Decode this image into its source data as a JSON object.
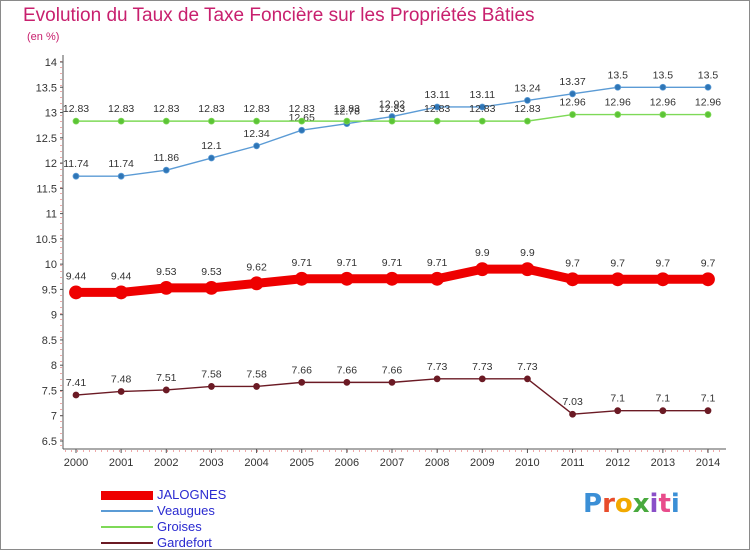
{
  "title": "Evolution du Taux de Taxe Foncière sur les Propriétés Bâties",
  "unit": "(en %)",
  "brand": {
    "text": "Proxiti",
    "colors": [
      "#3b8fd6",
      "#e84c2b",
      "#f2a900",
      "#48a93d",
      "#8a4fc8",
      "#e84c8b",
      "#3b8fd6"
    ]
  },
  "chart_data": {
    "type": "line",
    "title": "Evolution du Taux de Taxe Foncière sur les Propriétés Bâties",
    "ylabel": "(en %)",
    "xlabel": "",
    "categories": [
      "2000",
      "2001",
      "2002",
      "2003",
      "2004",
      "2005",
      "2006",
      "2007",
      "2008",
      "2009",
      "2010",
      "2011",
      "2012",
      "2013",
      "2014"
    ],
    "ylim": [
      6.5,
      14
    ],
    "yticks": [
      "6.5",
      "7",
      "7.5",
      "8",
      "8.5",
      "9",
      "9.5",
      "10",
      "10.5",
      "11",
      "11.5",
      "12",
      "12.5",
      "13",
      "13.5",
      "14"
    ],
    "grid": false,
    "series": [
      {
        "name": "JALOGNES",
        "color": "#ee0000",
        "bold": true,
        "values": [
          9.44,
          9.44,
          9.53,
          9.53,
          9.62,
          9.71,
          9.71,
          9.71,
          9.71,
          9.9,
          9.9,
          9.7,
          9.7,
          9.7,
          9.7
        ],
        "labels": [
          "9.44",
          "9.44",
          "9.53",
          "9.53",
          "9.62",
          "9.71",
          "9.71",
          "9.71",
          "9.71",
          "9.9",
          "9.9",
          "9.7",
          "9.7",
          "9.7",
          "9.7"
        ]
      },
      {
        "name": "Veaugues",
        "color": "#5b9bd5",
        "bold": false,
        "values": [
          11.74,
          11.74,
          11.86,
          12.1,
          12.34,
          12.65,
          12.78,
          12.92,
          13.11,
          13.11,
          13.24,
          13.37,
          13.5,
          13.5,
          13.5
        ],
        "labels": [
          "11.74",
          "11.74",
          "11.86",
          "12.1",
          "12.34",
          "12.65",
          "12.78",
          "12.92",
          "13.11",
          "13.11",
          "13.24",
          "13.37",
          "13.5",
          "13.5",
          "13.5"
        ]
      },
      {
        "name": "Groises",
        "color": "#7ed957",
        "bold": false,
        "values": [
          12.83,
          12.83,
          12.83,
          12.83,
          12.83,
          12.83,
          12.83,
          12.83,
          12.83,
          12.83,
          12.83,
          12.96,
          12.96,
          12.96,
          12.96
        ],
        "labels": [
          "12.83",
          "12.83",
          "12.83",
          "12.83",
          "12.83",
          "12.83",
          "12.83",
          "12.83",
          "12.83",
          "12.83",
          "12.83",
          "12.96",
          "12.96",
          "12.96",
          "12.96"
        ]
      },
      {
        "name": "Gardefort",
        "color": "#6b1a24",
        "bold": false,
        "values": [
          7.41,
          7.48,
          7.51,
          7.58,
          7.58,
          7.66,
          7.66,
          7.66,
          7.73,
          7.73,
          7.73,
          7.03,
          7.1,
          7.1,
          7.1
        ],
        "labels": [
          "7.41",
          "7.48",
          "7.51",
          "7.58",
          "7.58",
          "7.66",
          "7.66",
          "7.66",
          "7.73",
          "7.73",
          "7.73",
          "7.03",
          "7.1",
          "7.1",
          "7.1"
        ]
      }
    ]
  }
}
